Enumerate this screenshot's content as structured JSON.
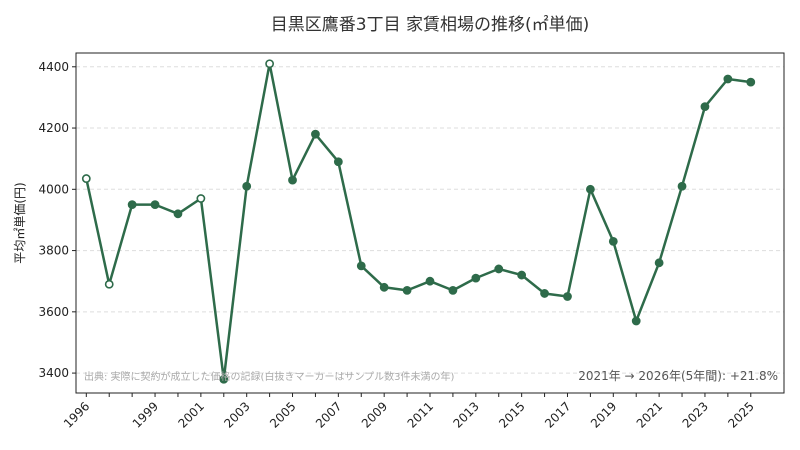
{
  "chart_data": {
    "type": "line",
    "title": "目黒区鷹番3丁目 家賃相場の推移(㎡単価)",
    "xlabel": "",
    "ylabel": "平均㎡単価(円)",
    "x": [
      1996,
      1997,
      1998,
      1999,
      2000,
      2001,
      2002,
      2003,
      2004,
      2005,
      2006,
      2007,
      2008,
      2009,
      2010,
      2011,
      2012,
      2013,
      2014,
      2015,
      2016,
      2017,
      2018,
      2019,
      2020,
      2021,
      2022,
      2023,
      2024,
      2025
    ],
    "values": [
      4035,
      3690,
      3950,
      3950,
      3920,
      3970,
      3380,
      4010,
      4410,
      4030,
      4180,
      4090,
      3750,
      3680,
      3670,
      3700,
      3670,
      3710,
      3740,
      3720,
      3660,
      3650,
      4000,
      3830,
      3570,
      3760,
      4010,
      4270,
      4360,
      4350
    ],
    "sparse": [
      true,
      true,
      false,
      false,
      false,
      true,
      false,
      false,
      true,
      false,
      false,
      false,
      false,
      false,
      false,
      false,
      false,
      false,
      false,
      false,
      false,
      false,
      false,
      false,
      false,
      false,
      false,
      false,
      false,
      false
    ],
    "x_tick_labels": [
      "1996",
      "1999",
      "2001",
      "2003",
      "2005",
      "2007",
      "2009",
      "2011",
      "2013",
      "2015",
      "2017",
      "2019",
      "2021",
      "2023",
      "2025"
    ],
    "y_ticks": [
      3400,
      3600,
      3800,
      4000,
      4200,
      4400
    ],
    "ylim": [
      3335,
      4445
    ],
    "grid": true,
    "line_color": "#2e6b4a",
    "note": "出典: 実際に契約が成立した価格の記録(白抜きマーカーはサンプル数3件未満の年)",
    "summary": "2021年 → 2026年(5年間): +21.8%"
  }
}
